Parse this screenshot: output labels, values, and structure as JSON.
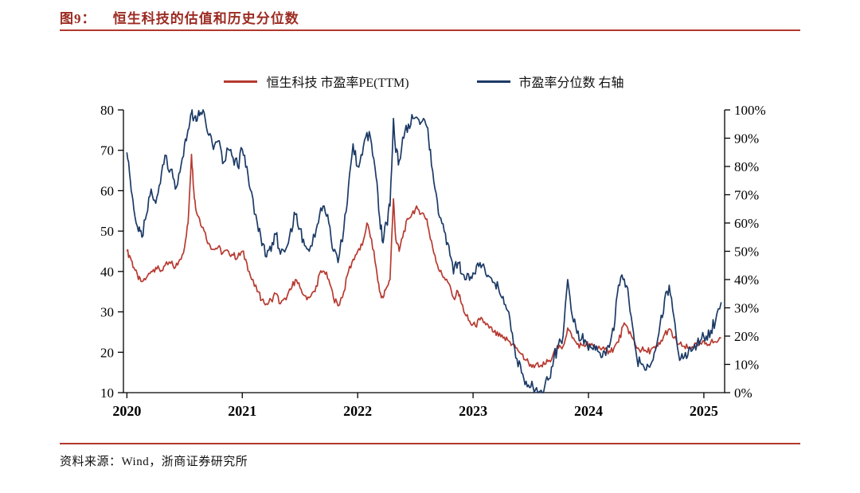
{
  "page": {
    "figure_label": "图9：",
    "title": "恒生科技的估值和历史分位数",
    "source": "资料来源：Wind，浙商证券研究所"
  },
  "colors": {
    "accent_red": "#b2372c",
    "title_red": "#9c2b22",
    "pe_line": "#b73a31",
    "pct_line": "#1c3a66"
  },
  "legend": [
    {
      "label": "恒生科技 市盈率PE(TTM)",
      "color": "#b73a31"
    },
    {
      "label": "市盈率分位数 右轴",
      "color": "#1c3a66"
    }
  ],
  "chart_data": {
    "type": "line",
    "title": "恒生科技的估值和历史分位数",
    "grid": false,
    "legend_position": "top-center",
    "x_label_ticks": [
      2020,
      2021,
      2022,
      2023,
      2024,
      2025
    ],
    "x_range": [
      2019.97,
      2025.18
    ],
    "left_axis": {
      "ticks": [
        10,
        20,
        30,
        40,
        50,
        60,
        70,
        80
      ],
      "range": [
        10,
        80
      ],
      "suffix": ""
    },
    "right_axis": {
      "ticks": [
        0,
        10,
        20,
        30,
        40,
        50,
        60,
        70,
        80,
        90,
        100
      ],
      "range": [
        0,
        100
      ],
      "suffix": "%"
    },
    "x": [
      2020.0,
      2020.03,
      2020.06,
      2020.1,
      2020.13,
      2020.17,
      2020.21,
      2020.25,
      2020.29,
      2020.33,
      2020.38,
      2020.42,
      2020.46,
      2020.5,
      2020.53,
      2020.56,
      2020.58,
      2020.6,
      2020.63,
      2020.67,
      2020.71,
      2020.75,
      2020.79,
      2020.83,
      2020.88,
      2020.92,
      2020.96,
      2021.0,
      2021.04,
      2021.08,
      2021.13,
      2021.17,
      2021.21,
      2021.25,
      2021.29,
      2021.33,
      2021.38,
      2021.42,
      2021.46,
      2021.5,
      2021.54,
      2021.58,
      2021.63,
      2021.67,
      2021.71,
      2021.75,
      2021.79,
      2021.83,
      2021.88,
      2021.92,
      2021.96,
      2022.0,
      2022.04,
      2022.08,
      2022.12,
      2022.16,
      2022.19,
      2022.22,
      2022.25,
      2022.28,
      2022.31,
      2022.33,
      2022.36,
      2022.4,
      2022.44,
      2022.48,
      2022.52,
      2022.56,
      2022.6,
      2022.63,
      2022.67,
      2022.71,
      2022.75,
      2022.79,
      2022.83,
      2022.87,
      2022.9,
      2022.94,
      2022.98,
      2023.02,
      2023.06,
      2023.1,
      2023.14,
      2023.18,
      2023.22,
      2023.26,
      2023.3,
      2023.34,
      2023.38,
      2023.42,
      2023.46,
      2023.5,
      2023.54,
      2023.58,
      2023.62,
      2023.66,
      2023.7,
      2023.74,
      2023.78,
      2023.82,
      2023.86,
      2023.9,
      2023.94,
      2023.98,
      2024.02,
      2024.06,
      2024.1,
      2024.14,
      2024.18,
      2024.22,
      2024.26,
      2024.3,
      2024.34,
      2024.38,
      2024.42,
      2024.46,
      2024.5,
      2024.54,
      2024.58,
      2024.62,
      2024.66,
      2024.7,
      2024.74,
      2024.78,
      2024.82,
      2024.86,
      2024.9,
      2024.94,
      2024.98,
      2025.02,
      2025.06,
      2025.1,
      2025.15
    ],
    "series": [
      {
        "name": "恒生科技 市盈率PE(TTM)",
        "axis": "left",
        "color": "#b73a31",
        "jitter": 0.9,
        "values": [
          45,
          43.5,
          41,
          38,
          37.5,
          38.5,
          40,
          41,
          40,
          41.5,
          42,
          41,
          43,
          46,
          52,
          69,
          60,
          55,
          53,
          50,
          47,
          45.5,
          46,
          44.5,
          45,
          44,
          43.5,
          45,
          42,
          38,
          35,
          33,
          32,
          33,
          34.5,
          32,
          33,
          35.5,
          38,
          36,
          34,
          33.5,
          35,
          39.5,
          40,
          38,
          33.5,
          31.5,
          35,
          40,
          43,
          45,
          46.5,
          52,
          48,
          41,
          35,
          33.5,
          36,
          38,
          58,
          48,
          45,
          50,
          53,
          55,
          55.5,
          54.5,
          53,
          48,
          44,
          40,
          38.5,
          37,
          33.5,
          35,
          32,
          29,
          27,
          26.5,
          28,
          27.5,
          26,
          25,
          24,
          23.5,
          23,
          22,
          21,
          19.5,
          18,
          17,
          16.8,
          16.5,
          17,
          18,
          20,
          21,
          21.5,
          26,
          23.5,
          22,
          21.8,
          22,
          21.8,
          21.3,
          21,
          20.6,
          20.3,
          21,
          22.5,
          26.5,
          26,
          23.5,
          21,
          20.6,
          20.2,
          20.6,
          21,
          22,
          24.5,
          25.8,
          23.5,
          22,
          21.5,
          21,
          21.4,
          21.8,
          22,
          22.3,
          22.5,
          22.6,
          23.5
        ]
      },
      {
        "name": "市盈率分位数 右轴",
        "axis": "right",
        "color": "#1c3a66",
        "jitter": 2.4,
        "values": [
          85,
          75,
          65,
          57,
          55,
          63,
          72,
          67,
          74,
          84,
          79,
          72,
          78,
          88,
          93,
          99,
          97,
          96,
          98,
          99,
          91,
          86,
          89,
          81,
          86,
          83,
          80,
          86,
          80,
          71,
          60,
          52,
          48,
          50,
          56,
          49,
          51,
          58,
          63,
          58,
          52,
          50,
          55,
          63,
          66,
          60,
          50,
          46,
          58,
          73,
          88,
          80,
          84,
          92,
          88,
          76,
          62,
          53,
          60,
          66,
          97,
          85,
          82,
          90,
          95,
          97,
          97,
          96,
          94,
          86,
          72,
          62,
          57,
          52,
          42,
          46,
          42,
          40,
          41,
          42,
          46,
          44,
          41,
          39,
          37,
          34,
          29,
          21,
          12,
          7,
          4,
          2,
          1,
          0.5,
          2,
          5,
          12,
          17,
          20,
          40,
          27,
          21,
          19,
          18,
          16,
          15,
          14,
          14.5,
          16,
          22,
          38,
          40,
          37,
          24,
          12,
          10,
          8,
          10,
          15,
          24,
          33,
          38,
          27,
          14,
          12,
          13,
          15,
          17,
          19,
          20,
          22,
          25,
          32
        ]
      }
    ]
  }
}
